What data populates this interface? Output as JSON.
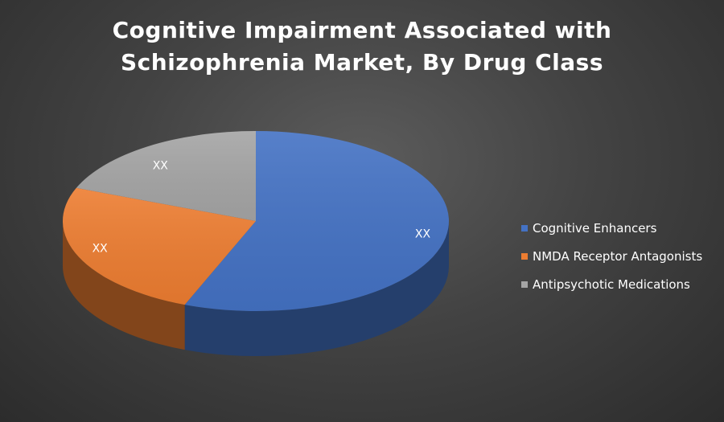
{
  "chart_data": {
    "type": "pie",
    "title_lines": [
      "Cognitive Impairment Associated with",
      "Schizophrenia Market, By Drug Class"
    ],
    "series": [
      {
        "name": "Cognitive Enhancers",
        "value": 56,
        "label": "XX",
        "color": "#4472C4"
      },
      {
        "name": "NMDA Receptor Antagonists",
        "value": 25,
        "label": "XX",
        "color": "#ED7D31"
      },
      {
        "name": "Antipsychotic Medications",
        "value": 19,
        "label": "XX",
        "color": "#A5A5A5"
      }
    ],
    "legend": "right",
    "style": "3d"
  }
}
